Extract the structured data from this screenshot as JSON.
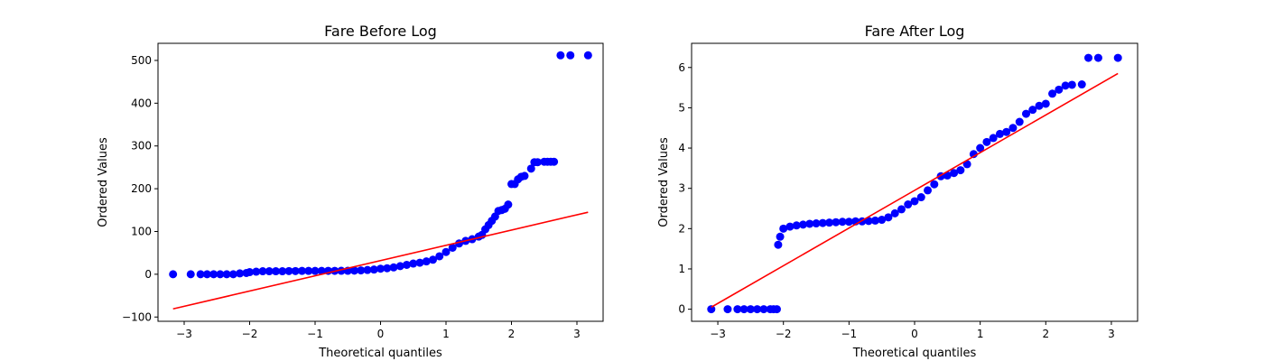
{
  "chart_data": [
    {
      "type": "scatter",
      "title": "Fare Before Log",
      "xlabel": "Theoretical quantiles",
      "ylabel": "Ordered Values",
      "xlim": [
        -3.4,
        3.4
      ],
      "ylim": [
        -110,
        540
      ],
      "xticks": [
        -3,
        -2,
        -1,
        0,
        1,
        2,
        3
      ],
      "xtick_labels": [
        "−3",
        "−2",
        "−1",
        "0",
        "1",
        "2",
        "3"
      ],
      "yticks": [
        -100,
        0,
        100,
        200,
        300,
        400,
        500
      ],
      "ytick_labels": [
        "−100",
        "0",
        "100",
        "200",
        "300",
        "400",
        "500"
      ],
      "grid": false,
      "colors": {
        "points": "#0000ff",
        "fit_line": "#ff0000"
      },
      "fit_line": {
        "x": [
          -3.17,
          3.17
        ],
        "y": [
          -81,
          145
        ]
      },
      "series": [
        {
          "values": [
            [
              -3.17,
              0
            ],
            [
              -2.9,
              0
            ],
            [
              -2.75,
              0
            ],
            [
              -2.65,
              0
            ],
            [
              -2.55,
              0
            ],
            [
              -2.45,
              0
            ],
            [
              -2.35,
              0
            ],
            [
              -2.25,
              0
            ],
            [
              -2.15,
              2
            ],
            [
              -2.05,
              3
            ],
            [
              -2.0,
              5
            ],
            [
              -1.9,
              6
            ],
            [
              -1.8,
              7
            ],
            [
              -1.7,
              7
            ],
            [
              -1.6,
              7
            ],
            [
              -1.5,
              7
            ],
            [
              -1.4,
              7.5
            ],
            [
              -1.3,
              7.5
            ],
            [
              -1.2,
              7.8
            ],
            [
              -1.1,
              7.8
            ],
            [
              -1.0,
              7.9
            ],
            [
              -0.9,
              7.9
            ],
            [
              -0.8,
              8
            ],
            [
              -0.7,
              8
            ],
            [
              -0.6,
              8.1
            ],
            [
              -0.5,
              8.1
            ],
            [
              -0.4,
              8.5
            ],
            [
              -0.3,
              9
            ],
            [
              -0.2,
              10
            ],
            [
              -0.1,
              11
            ],
            [
              0.0,
              13
            ],
            [
              0.1,
              14
            ],
            [
              0.2,
              16
            ],
            [
              0.3,
              19
            ],
            [
              0.4,
              22
            ],
            [
              0.5,
              25
            ],
            [
              0.6,
              27
            ],
            [
              0.7,
              30
            ],
            [
              0.8,
              34
            ],
            [
              0.9,
              42
            ],
            [
              1.0,
              52
            ],
            [
              1.1,
              62
            ],
            [
              1.2,
              72
            ],
            [
              1.3,
              78
            ],
            [
              1.4,
              82
            ],
            [
              1.5,
              88
            ],
            [
              1.55,
              92
            ],
            [
              1.6,
              105
            ],
            [
              1.65,
              115
            ],
            [
              1.7,
              125
            ],
            [
              1.75,
              135
            ],
            [
              1.8,
              148
            ],
            [
              1.85,
              150
            ],
            [
              1.9,
              153
            ],
            [
              1.95,
              163
            ],
            [
              2.0,
              211
            ],
            [
              2.05,
              211
            ],
            [
              2.1,
              222
            ],
            [
              2.15,
              228
            ],
            [
              2.2,
              230
            ],
            [
              2.3,
              247
            ],
            [
              2.35,
              262
            ],
            [
              2.4,
              262
            ],
            [
              2.5,
              263
            ],
            [
              2.55,
              263
            ],
            [
              2.6,
              263
            ],
            [
              2.65,
              263
            ],
            [
              2.75,
              512
            ],
            [
              2.9,
              512
            ],
            [
              3.17,
              512
            ]
          ]
        }
      ]
    },
    {
      "type": "scatter",
      "title": "Fare After Log",
      "xlabel": "Theoretical quantiles",
      "ylabel": "Ordered Values",
      "xlim": [
        -3.4,
        3.4
      ],
      "ylim": [
        -0.3,
        6.6
      ],
      "xticks": [
        -3,
        -2,
        -1,
        0,
        1,
        2,
        3
      ],
      "xtick_labels": [
        "−3",
        "−2",
        "−1",
        "0",
        "1",
        "2",
        "3"
      ],
      "yticks": [
        0,
        1,
        2,
        3,
        4,
        5,
        6
      ],
      "ytick_labels": [
        "0",
        "1",
        "2",
        "3",
        "4",
        "5",
        "6"
      ],
      "grid": false,
      "colors": {
        "points": "#0000ff",
        "fit_line": "#ff0000"
      },
      "fit_line": {
        "x": [
          -3.1,
          3.1
        ],
        "y": [
          0.05,
          5.85
        ]
      },
      "series": [
        {
          "values": [
            [
              -3.1,
              0
            ],
            [
              -2.85,
              0
            ],
            [
              -2.7,
              0
            ],
            [
              -2.6,
              0
            ],
            [
              -2.5,
              0
            ],
            [
              -2.4,
              0
            ],
            [
              -2.3,
              0
            ],
            [
              -2.2,
              0
            ],
            [
              -2.15,
              0
            ],
            [
              -2.1,
              0
            ],
            [
              -2.08,
              1.6
            ],
            [
              -2.05,
              1.8
            ],
            [
              -2.0,
              2.0
            ],
            [
              -1.9,
              2.05
            ],
            [
              -1.8,
              2.08
            ],
            [
              -1.7,
              2.1
            ],
            [
              -1.6,
              2.12
            ],
            [
              -1.5,
              2.13
            ],
            [
              -1.4,
              2.14
            ],
            [
              -1.3,
              2.15
            ],
            [
              -1.2,
              2.16
            ],
            [
              -1.1,
              2.17
            ],
            [
              -1.0,
              2.17
            ],
            [
              -0.9,
              2.18
            ],
            [
              -0.8,
              2.18
            ],
            [
              -0.7,
              2.19
            ],
            [
              -0.6,
              2.2
            ],
            [
              -0.5,
              2.22
            ],
            [
              -0.4,
              2.28
            ],
            [
              -0.3,
              2.38
            ],
            [
              -0.2,
              2.48
            ],
            [
              -0.1,
              2.6
            ],
            [
              0.0,
              2.68
            ],
            [
              0.1,
              2.78
            ],
            [
              0.2,
              2.95
            ],
            [
              0.3,
              3.1
            ],
            [
              0.4,
              3.3
            ],
            [
              0.5,
              3.32
            ],
            [
              0.6,
              3.38
            ],
            [
              0.7,
              3.45
            ],
            [
              0.8,
              3.6
            ],
            [
              0.9,
              3.85
            ],
            [
              1.0,
              4.0
            ],
            [
              1.1,
              4.15
            ],
            [
              1.2,
              4.25
            ],
            [
              1.3,
              4.35
            ],
            [
              1.4,
              4.4
            ],
            [
              1.5,
              4.5
            ],
            [
              1.6,
              4.65
            ],
            [
              1.7,
              4.85
            ],
            [
              1.8,
              4.95
            ],
            [
              1.9,
              5.05
            ],
            [
              2.0,
              5.1
            ],
            [
              2.1,
              5.35
            ],
            [
              2.2,
              5.45
            ],
            [
              2.3,
              5.55
            ],
            [
              2.4,
              5.57
            ],
            [
              2.55,
              5.58
            ],
            [
              2.65,
              6.24
            ],
            [
              2.8,
              6.24
            ],
            [
              3.1,
              6.24
            ]
          ]
        }
      ]
    }
  ]
}
